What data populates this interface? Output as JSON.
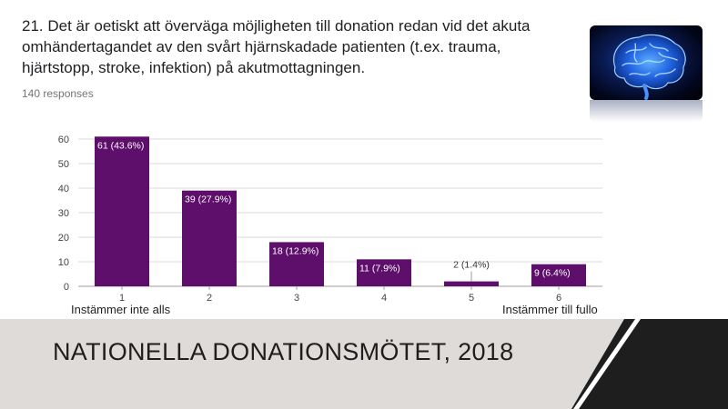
{
  "question": "21. Det är oetiskt att överväga möjligheten till donation redan vid det akuta omhändertagandet av den svårt hjärnskadade patienten (t.ex. trauma, hjärtstopp, stroke, infektion) på akutmottagningen.",
  "responses": "140 responses",
  "scale_low_label": "Instämmer inte alls",
  "scale_high_label": "Instämmer till fullo",
  "footer_title": "NATIONELLA DONATIONSMÖTET, 2018",
  "image_icon": "brain-image",
  "colors": {
    "bar": "#5d0f6b",
    "grid": "#d9d9d9",
    "footer_bg": "#dedbd9",
    "corner_dark": "#1e1e1e"
  },
  "chart_data": {
    "type": "bar",
    "categories": [
      "1",
      "2",
      "3",
      "4",
      "5",
      "6"
    ],
    "values": [
      61,
      39,
      18,
      11,
      2,
      9
    ],
    "data_labels": [
      "61 (43.6%)",
      "39 (27.9%)",
      "18 (12.9%)",
      "11 (7.9%)",
      "2 (1.4%)",
      "9 (6.4%)"
    ],
    "yticks": [
      0,
      10,
      20,
      30,
      40,
      50,
      60
    ],
    "ylim": [
      0,
      60
    ],
    "grid": true,
    "title": "",
    "xlabel": "",
    "ylabel": ""
  }
}
